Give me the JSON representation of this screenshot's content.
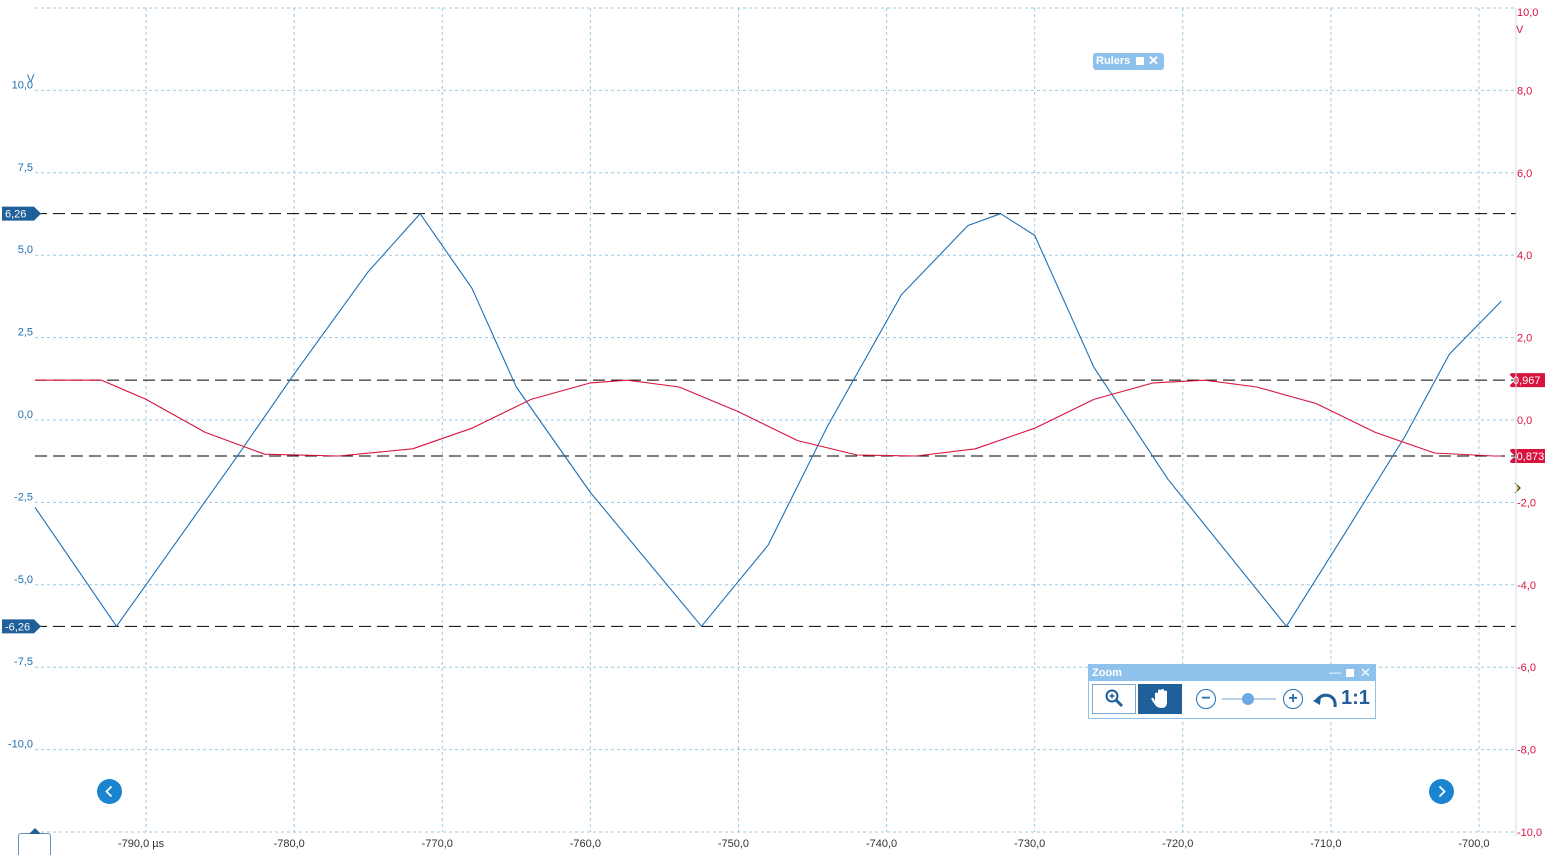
{
  "chart_data": {
    "type": "line",
    "x_unit": "µs",
    "x_range": [
      -797.5,
      -697.5
    ],
    "x_ticks": [
      {
        "value": -790,
        "label": "-790,0 µs"
      },
      {
        "value": -780,
        "label": "-780,0"
      },
      {
        "value": -770,
        "label": "-770,0"
      },
      {
        "value": -760,
        "label": "-760,0"
      },
      {
        "value": -750,
        "label": "-750,0"
      },
      {
        "value": -740,
        "label": "-740,0"
      },
      {
        "value": -730,
        "label": "-730,0"
      },
      {
        "value": -720,
        "label": "-720,0"
      },
      {
        "value": -710,
        "label": "-710,0"
      },
      {
        "value": -700,
        "label": "-700,0"
      }
    ],
    "left_axis": {
      "unit": "V",
      "range": [
        -12.5,
        12.5
      ],
      "ticks": [
        {
          "value": 10,
          "label": "10,0"
        },
        {
          "value": 7.5,
          "label": "7,5"
        },
        {
          "value": 5,
          "label": "5,0"
        },
        {
          "value": 2.5,
          "label": "2,5"
        },
        {
          "value": 0,
          "label": "0,0"
        },
        {
          "value": -2.5,
          "label": "-2,5"
        },
        {
          "value": -5,
          "label": "-5,0"
        },
        {
          "value": -7.5,
          "label": "-7,5"
        },
        {
          "value": -10,
          "label": "-10,0"
        }
      ],
      "color": "#1f6fb2"
    },
    "right_axis": {
      "unit": "V",
      "range": [
        -10,
        10
      ],
      "ticks": [
        {
          "value": 10,
          "label": "10,0"
        },
        {
          "value": 8,
          "label": "8,0"
        },
        {
          "value": 6,
          "label": "6,0"
        },
        {
          "value": 4,
          "label": "4,0"
        },
        {
          "value": 2,
          "label": "2,0"
        },
        {
          "value": 0,
          "label": "0,0"
        },
        {
          "value": -2,
          "label": "-2,0"
        },
        {
          "value": -4,
          "label": "-4,0"
        },
        {
          "value": -6,
          "label": "-6,0"
        },
        {
          "value": -8,
          "label": "-8,0"
        },
        {
          "value": -10,
          "label": "-10,0"
        }
      ],
      "color": "#d9133f"
    },
    "grid": true,
    "series": [
      {
        "axis": "left",
        "color": "#1f6fb2",
        "x": [
          -797.5,
          -792,
          -784,
          -780,
          -775,
          -771.5,
          -768,
          -765,
          -760,
          -752.5,
          -748,
          -744,
          -739,
          -734.5,
          -732.3,
          -730,
          -726,
          -721,
          -713,
          -709,
          -705,
          -702,
          -698.5
        ],
        "y": [
          -2.65,
          -6.26,
          -1.2,
          1.4,
          4.5,
          6.26,
          4.0,
          1.0,
          -2.2,
          -6.26,
          -3.8,
          -0.2,
          3.8,
          5.9,
          6.26,
          5.6,
          1.6,
          -1.8,
          -6.26,
          -3.4,
          -0.5,
          2.0,
          3.6
        ]
      },
      {
        "axis": "right",
        "color": "#d9133f",
        "x": [
          -797.5,
          -793,
          -790,
          -786,
          -782,
          -777,
          -772,
          -768,
          -764,
          -760,
          -757.5,
          -754,
          -750,
          -746,
          -742,
          -738,
          -734,
          -730,
          -726,
          -722,
          -718.5,
          -715,
          -711,
          -707,
          -703,
          -699,
          -698.5
        ],
        "y": [
          0.967,
          0.967,
          0.5,
          -0.3,
          -0.83,
          -0.873,
          -0.7,
          -0.2,
          0.5,
          0.9,
          0.967,
          0.8,
          0.2,
          -0.5,
          -0.85,
          -0.873,
          -0.7,
          -0.2,
          0.5,
          0.9,
          0.967,
          0.8,
          0.4,
          -0.3,
          -0.8,
          -0.873,
          -0.873
        ]
      }
    ],
    "rulers": [
      {
        "axis": "left",
        "value": 6.26,
        "label": "6,26"
      },
      {
        "axis": "left",
        "value": -6.26,
        "label": "-6,26"
      },
      {
        "axis": "right",
        "value": 0.967,
        "label": "0,967"
      },
      {
        "axis": "right",
        "value": -0.873,
        "label": "-0,873"
      }
    ]
  },
  "rulers_panel": {
    "title": "Rulers"
  },
  "zoom_panel": {
    "title": "Zoom",
    "minimize": "—",
    "reset_label": "1:1",
    "zoom_out": "−",
    "zoom_in": "+",
    "level": 0.5
  },
  "icons": {
    "close": "close-icon",
    "zoom_tool": "magnifier-zoom-icon",
    "pan_tool": "hand-pan-icon",
    "undo": "undo-arrow-icon",
    "nav_left": "chevron-left-icon",
    "nav_right": "chevron-right-icon",
    "trigger": "trigger-marker-icon"
  },
  "colors": {
    "grid": "#9ec9e3",
    "ruler": "#000000",
    "panel": "#8ec2ec",
    "nav": "#1a84d0"
  }
}
